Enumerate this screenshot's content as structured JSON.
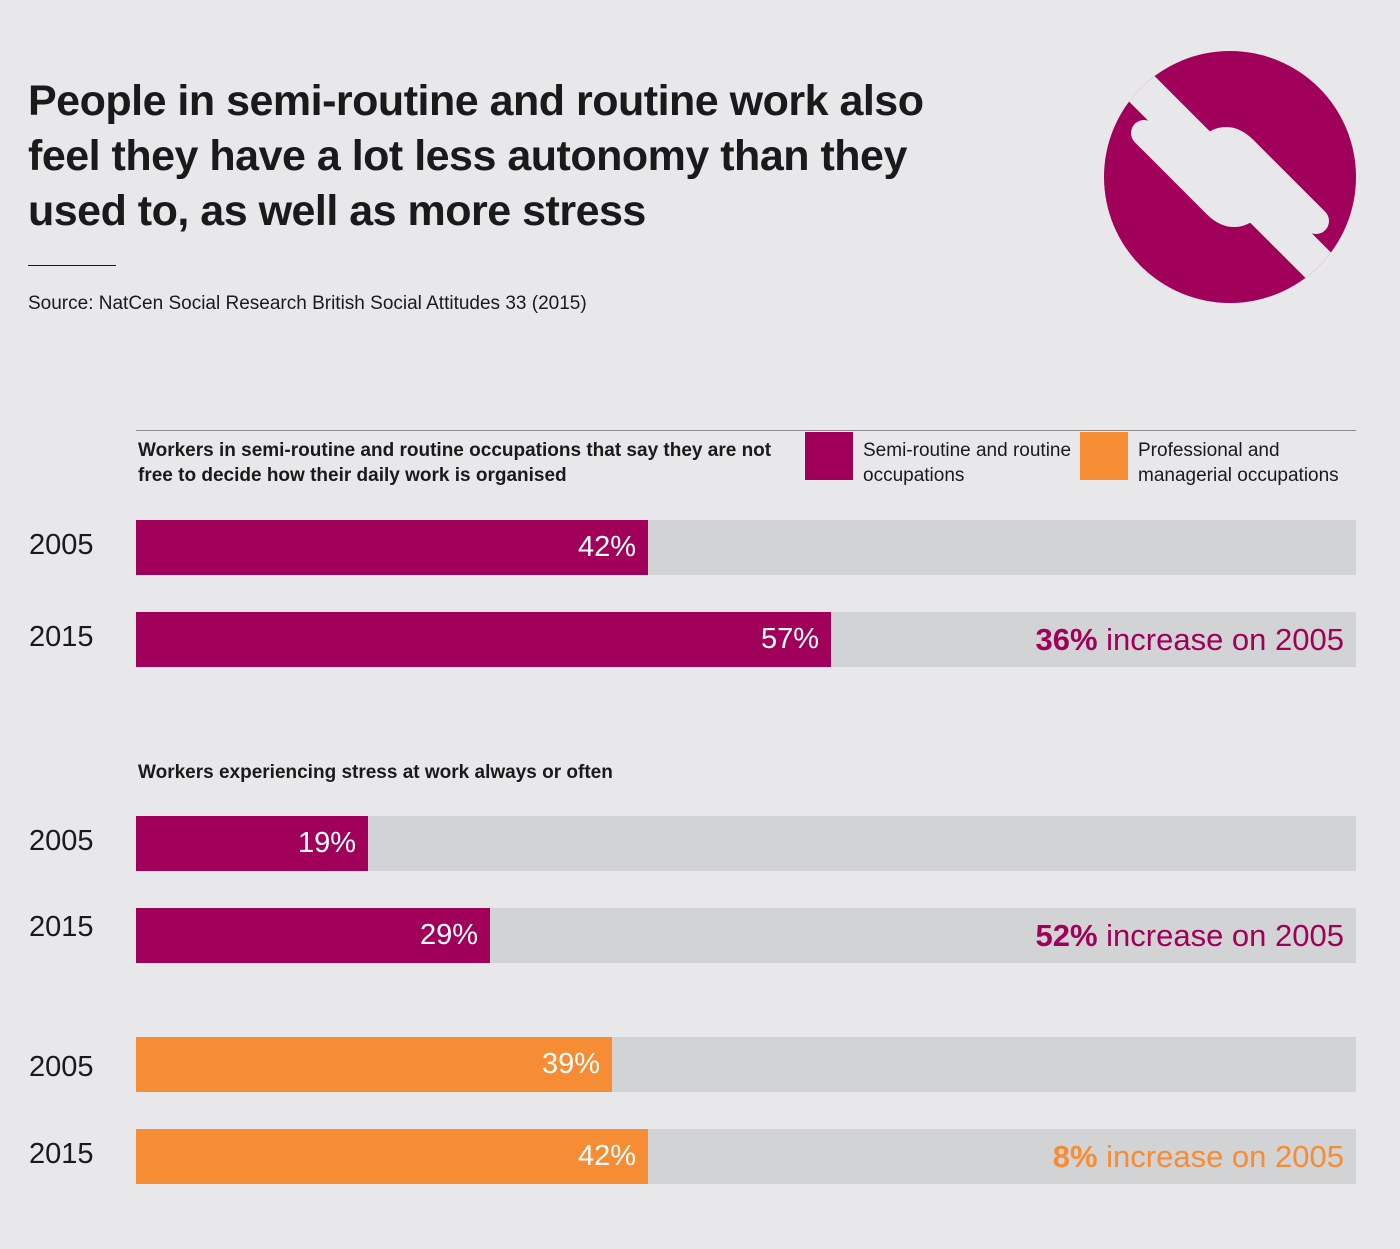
{
  "header": {
    "title": "People in semi-routine and routine work also feel they have a lot less autonomy than they used to, as well as more stress",
    "source": "Source: NatCen Social Research British Social Attitudes 33 (2015)"
  },
  "legend": [
    {
      "label": "Semi-routine and routine occupations",
      "color": "#a0005a"
    },
    {
      "label": "Professional and managerial occupations",
      "color": "#f68c33"
    }
  ],
  "chart_data": [
    {
      "type": "bar",
      "orientation": "horizontal",
      "title": "Workers in semi-routine and routine occupations that say they are not free to decide how their daily work is organised",
      "xlim": [
        0,
        100
      ],
      "groups": [
        {
          "series": "Semi-routine and routine occupations",
          "color": "#a0005a",
          "categories": [
            "2005",
            "2015"
          ],
          "values": [
            42,
            57
          ],
          "labels": [
            "42%",
            "57%"
          ],
          "note_bold": "36%",
          "note_rest": " increase on 2005"
        }
      ]
    },
    {
      "type": "bar",
      "orientation": "horizontal",
      "title": "Workers experiencing stress at work always or often",
      "xlim": [
        0,
        100
      ],
      "groups": [
        {
          "series": "Semi-routine and routine occupations",
          "color": "#a0005a",
          "categories": [
            "2005",
            "2015"
          ],
          "values": [
            19,
            29
          ],
          "labels": [
            "19%",
            "29%"
          ],
          "note_bold": "52%",
          "note_rest": " increase on 2005"
        },
        {
          "series": "Professional and managerial occupations",
          "color": "#f68c33",
          "categories": [
            "2005",
            "2015"
          ],
          "values": [
            39,
            42
          ],
          "labels": [
            "39%",
            "42%"
          ],
          "note_bold": "8%",
          "note_rest": " increase on 2005"
        }
      ]
    }
  ]
}
